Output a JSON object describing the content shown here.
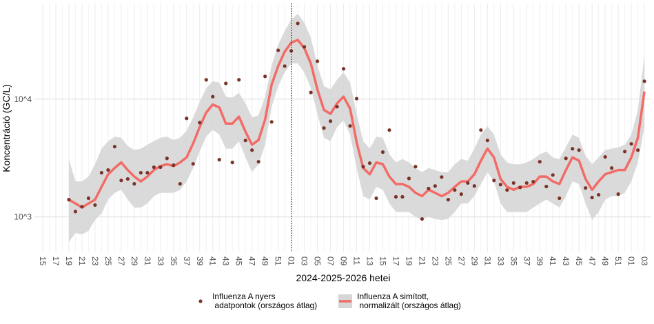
{
  "chart_data": {
    "type": "line",
    "y_label": "Koncentráció (GC/L)",
    "x_label": "2024-2025-2026 hetei",
    "log_y": true,
    "grid": true,
    "legend_position": "bottom",
    "ylim": [
      500,
      65000
    ],
    "yticks": [
      {
        "value": 1000,
        "label": "10^3"
      },
      {
        "value": 10000,
        "label": "10^4"
      }
    ],
    "categories": [
      "15",
      null,
      "17",
      null,
      "19",
      null,
      "21",
      null,
      "23",
      null,
      "25",
      null,
      "27",
      null,
      "29",
      null,
      "31",
      null,
      "33",
      null,
      "35",
      null,
      "37",
      null,
      "39",
      null,
      "41",
      null,
      "43",
      null,
      "45",
      null,
      "47",
      null,
      "49",
      null,
      "51",
      null,
      "01",
      null,
      "03",
      null,
      "05",
      null,
      "07",
      null,
      "09",
      null,
      "11",
      null,
      "13",
      null,
      "15",
      null,
      "17",
      null,
      "19",
      null,
      "21",
      null,
      "23",
      null,
      "25",
      null,
      "27",
      null,
      "29",
      null,
      "31",
      null,
      "33",
      null,
      "35",
      null,
      "37",
      null,
      "39",
      null,
      "41",
      null,
      "43",
      null,
      "45",
      null,
      "47",
      null,
      "49",
      null,
      "51",
      null,
      "01",
      null,
      "03"
    ],
    "series": [
      {
        "name": "Influenza A nyers\n adatpontok (országos átlag)",
        "type": "scatter",
        "color": "#7b3328",
        "values": [
          null,
          null,
          null,
          null,
          1400,
          1110,
          1220,
          1440,
          1260,
          2370,
          2500,
          3950,
          2040,
          2100,
          1910,
          2370,
          2370,
          2640,
          2640,
          3140,
          2750,
          1910,
          6860,
          2820,
          6320,
          14600,
          10500,
          3060,
          13600,
          2900,
          14600,
          4460,
          3690,
          2940,
          15600,
          6410,
          26000,
          19100,
          25700,
          44000,
          27800,
          11400,
          21000,
          5680,
          6500,
          8630,
          18100,
          5920,
          10100,
          2670,
          2860,
          1440,
          3550,
          5460,
          1480,
          1480,
          2120,
          2670,
          960,
          1740,
          1830,
          2180,
          1400,
          1690,
          1560,
          1940,
          1830,
          5460,
          4460,
          2040,
          1880,
          1690,
          1940,
          1780,
          1940,
          1990,
          2940,
          1810,
          2270,
          1440,
          3140,
          3790,
          3690,
          1760,
          1460,
          1540,
          3230,
          2600,
          1560,
          3590,
          4170,
          3690,
          14200
        ]
      },
      {
        "name": "Influenza A simított,\n normalizált (országos átlag)",
        "type": "line",
        "color": "#f26b66",
        "band_color": "#d6d6d6",
        "values": [
          null,
          null,
          null,
          null,
          1400,
          1300,
          1200,
          1300,
          1400,
          1800,
          2300,
          2600,
          2900,
          2500,
          2200,
          2000,
          2200,
          2500,
          2700,
          2800,
          2700,
          2900,
          3200,
          4200,
          5800,
          7700,
          9000,
          8500,
          6200,
          6200,
          7100,
          5300,
          4100,
          4500,
          6700,
          13300,
          19100,
          25300,
          30200,
          31800,
          27100,
          20100,
          12100,
          8100,
          7500,
          9200,
          10500,
          8300,
          4300,
          2600,
          2300,
          2900,
          2800,
          2200,
          1900,
          1900,
          1800,
          1600,
          1500,
          1700,
          1600,
          1500,
          1600,
          1800,
          2000,
          2000,
          2300,
          3000,
          3800,
          3200,
          2100,
          1800,
          1700,
          1800,
          1800,
          1900,
          2200,
          2200,
          2000,
          1900,
          2500,
          3200,
          3000,
          2100,
          1700,
          2000,
          2300,
          2400,
          2500,
          2500,
          3200,
          4700,
          11600
        ],
        "upper": [
          null,
          null,
          null,
          null,
          3100,
          2000,
          2000,
          2200,
          2800,
          3800,
          4400,
          4800,
          4700,
          4000,
          3700,
          3800,
          4100,
          4400,
          4700,
          4800,
          4500,
          4700,
          5400,
          7000,
          9500,
          12400,
          14200,
          13800,
          10500,
          10300,
          11300,
          9200,
          7000,
          7300,
          10500,
          19400,
          29000,
          37900,
          47700,
          53100,
          44600,
          33100,
          19400,
          12900,
          12100,
          14600,
          16900,
          13800,
          7500,
          4400,
          3800,
          4800,
          4700,
          3400,
          2900,
          3100,
          2900,
          2600,
          2400,
          2600,
          2500,
          2400,
          2400,
          2800,
          3100,
          3000,
          3800,
          5000,
          5900,
          5000,
          3400,
          2900,
          2800,
          2800,
          2900,
          3100,
          3400,
          3600,
          3200,
          3100,
          3900,
          5000,
          4700,
          3300,
          2800,
          3200,
          3700,
          3800,
          3900,
          4100,
          5000,
          8100,
          23700
        ],
        "lower": [
          null,
          null,
          null,
          null,
          610,
          730,
          710,
          760,
          940,
          1070,
          1400,
          1600,
          1700,
          1400,
          1200,
          1200,
          1300,
          1500,
          1600,
          1600,
          1600,
          1700,
          2000,
          2600,
          3600,
          4800,
          5500,
          5000,
          3800,
          3800,
          4400,
          3200,
          2400,
          2800,
          4100,
          8600,
          12900,
          16900,
          20100,
          20100,
          16900,
          12400,
          7500,
          4700,
          4400,
          5800,
          6600,
          5000,
          2600,
          1500,
          1400,
          1800,
          1700,
          1300,
          1100,
          1100,
          1100,
          1000,
          960,
          1000,
          960,
          940,
          960,
          1100,
          1300,
          1300,
          1500,
          1900,
          2400,
          2000,
          1300,
          1100,
          1100,
          1100,
          1100,
          1200,
          1300,
          1400,
          1300,
          1200,
          1500,
          2000,
          1900,
          1300,
          940,
          1100,
          1400,
          1500,
          1500,
          1600,
          2000,
          2900,
          5800
        ]
      }
    ]
  }
}
